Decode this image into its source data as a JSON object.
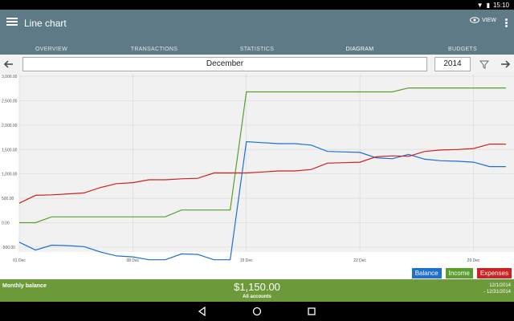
{
  "status": {
    "time": "15:10"
  },
  "app": {
    "title": "Line chart",
    "view_label": "VIEW"
  },
  "tabs": [
    {
      "label": "OVERVIEW",
      "active": false
    },
    {
      "label": "TRANSACTIONS",
      "active": false
    },
    {
      "label": "STATISTICS",
      "active": false
    },
    {
      "label": "DIAGRAM",
      "active": true
    },
    {
      "label": "BUDGETS",
      "active": false
    }
  ],
  "filter": {
    "month": "December",
    "year": "2014"
  },
  "chart_data": {
    "type": "line",
    "ylim": [
      -600,
      3050
    ],
    "y_ticks": [
      {
        "value": 3000,
        "label": "3,000.00"
      },
      {
        "value": 2500,
        "label": "2,500.00"
      },
      {
        "value": 2000,
        "label": "2,000.00"
      },
      {
        "value": 1500,
        "label": "1,500.00"
      },
      {
        "value": 1000,
        "label": "1,000.00"
      },
      {
        "value": 500,
        "label": "500.00"
      },
      {
        "value": 0,
        "label": "0.00"
      },
      {
        "value": -500,
        "label": "-500.00"
      }
    ],
    "x_ticks": [
      {
        "day": 1,
        "label": "01 Dec"
      },
      {
        "day": 8,
        "label": "08 Dec"
      },
      {
        "day": 15,
        "label": "15 Dec"
      },
      {
        "day": 22,
        "label": "22 Dec"
      },
      {
        "day": 29,
        "label": "29 Dec"
      }
    ],
    "x": [
      1,
      2,
      3,
      4,
      5,
      6,
      7,
      8,
      9,
      10,
      11,
      12,
      13,
      14,
      15,
      16,
      17,
      18,
      19,
      20,
      21,
      22,
      23,
      24,
      25,
      26,
      27,
      28,
      29,
      30,
      31
    ],
    "series": [
      {
        "name": "Balance",
        "color": "#1f6fd1",
        "values": [
          -400,
          -560,
          -460,
          -470,
          -490,
          -600,
          -680,
          -700,
          -760,
          -760,
          -640,
          -650,
          -760,
          -760,
          1660,
          1640,
          1620,
          1620,
          1590,
          1460,
          1450,
          1440,
          1330,
          1310,
          1400,
          1300,
          1270,
          1260,
          1240,
          1150,
          1150
        ]
      },
      {
        "name": "Income",
        "color": "#5a9e2e",
        "values": [
          0,
          0,
          120,
          120,
          120,
          120,
          120,
          120,
          120,
          120,
          260,
          260,
          260,
          260,
          2680,
          2680,
          2680,
          2680,
          2680,
          2680,
          2680,
          2680,
          2680,
          2680,
          2760,
          2760,
          2760,
          2760,
          2760,
          2760,
          2760
        ]
      },
      {
        "name": "Expenses",
        "color": "#cc2222",
        "values": [
          400,
          560,
          570,
          590,
          610,
          720,
          800,
          820,
          880,
          880,
          900,
          910,
          1020,
          1020,
          1020,
          1040,
          1060,
          1060,
          1090,
          1220,
          1230,
          1240,
          1350,
          1370,
          1360,
          1460,
          1490,
          1500,
          1520,
          1610,
          1610
        ]
      }
    ]
  },
  "summary": {
    "label": "Monthly balance",
    "amount": "$1,150.00",
    "accounts": "All accounts",
    "date_from": "12/1/2014",
    "date_to": "- 12/31/2014"
  }
}
